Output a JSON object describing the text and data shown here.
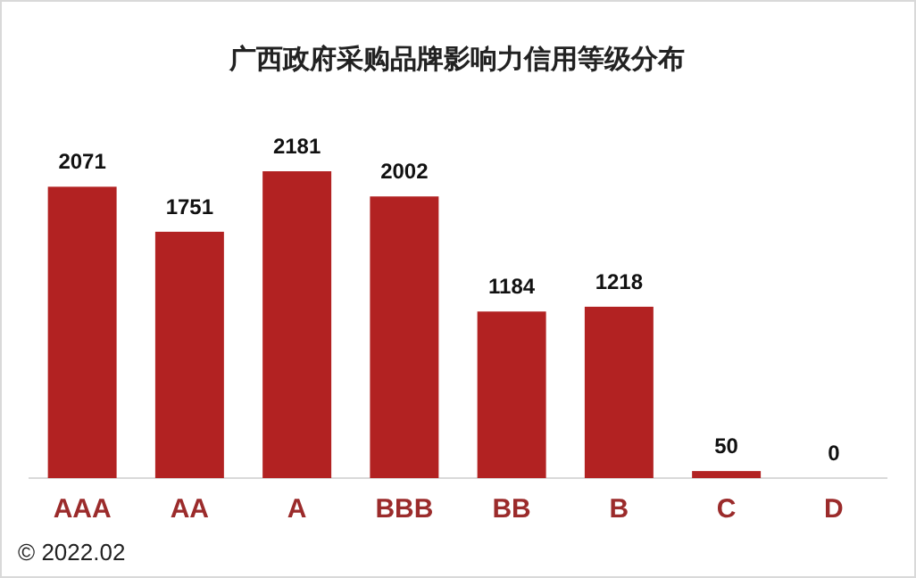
{
  "chart_data": {
    "type": "bar",
    "title": "广西政府采购品牌影响力信用等级分布",
    "categories": [
      "AAA",
      "AA",
      "A",
      "BBB",
      "BB",
      "B",
      "C",
      "D"
    ],
    "values": [
      2071,
      1751,
      2181,
      2002,
      1184,
      1218,
      50,
      0
    ],
    "color": "#b22222",
    "data_labels": true,
    "annotations": [
      "© 2022.02"
    ]
  }
}
